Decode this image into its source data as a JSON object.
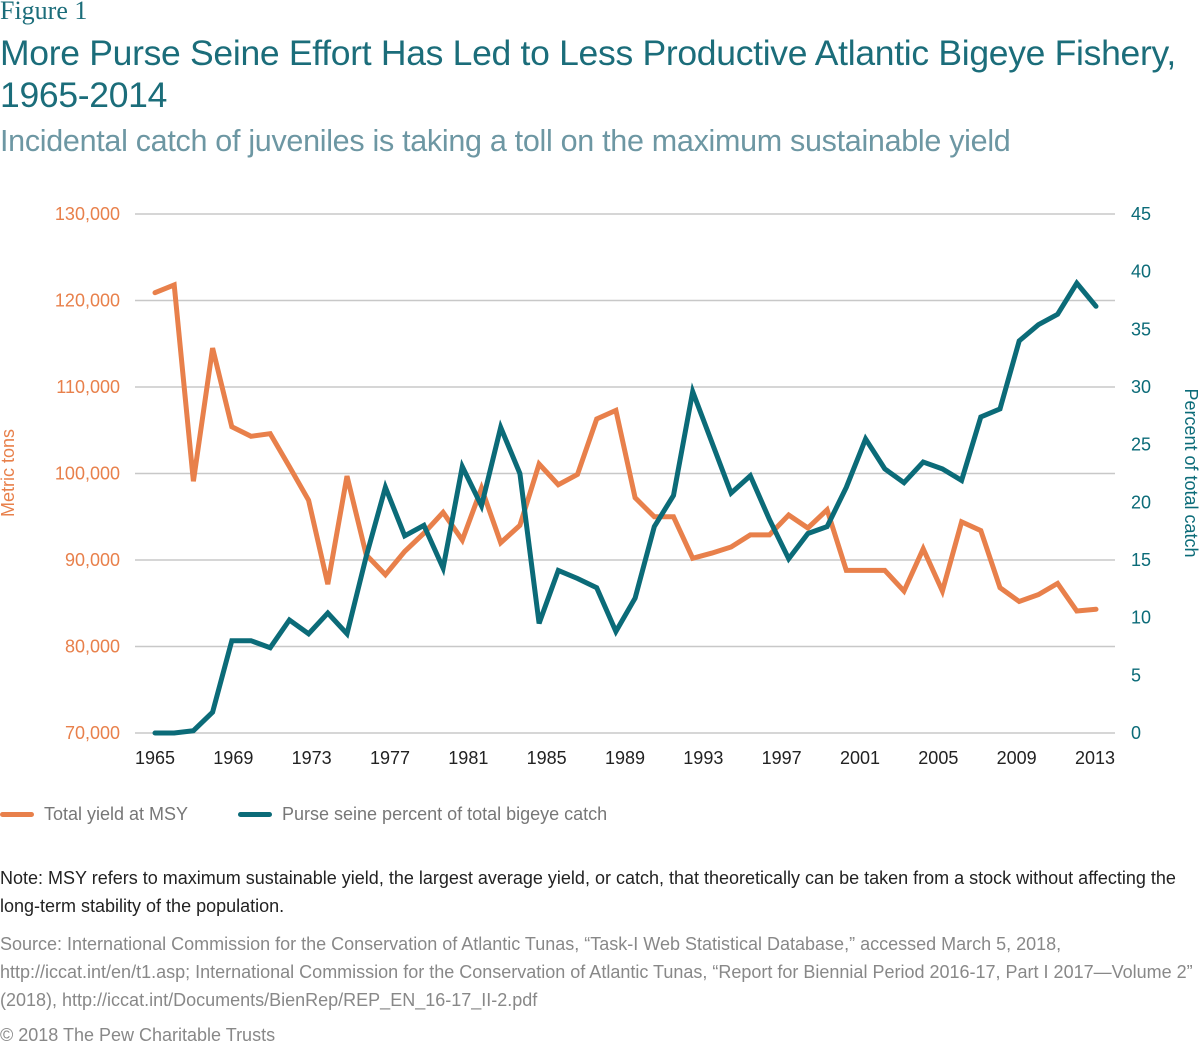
{
  "figure_label": "Figure 1",
  "title": "More Purse Seine Effort Has Led to Less Productive Atlantic Bigeye Fishery, 1965-2014",
  "subtitle": "Incidental catch of juveniles is taking a toll on the maximum sustainable yield",
  "note": "Note: MSY refers to maximum sustainable yield, the largest average yield, or catch, that theoretically can be taken from a stock without affecting the long-term stability of the population.",
  "source": "Source: International Commission for the Conservation of Atlantic Tunas, “Task-I Web Statistical Database,” accessed March 5, 2018, http://iccat.int/en/t1.asp; International Commission for the Conservation of Atlantic Tunas, “Report for Biennial Period 2016-17, Part I 2017—Volume 2” (2018), http://iccat.int/Documents/BienRep/REP_EN_16-17_II-2.pdf",
  "copyright": "© 2018 The Pew Charitable Trusts",
  "chart_data": {
    "type": "line",
    "x": [
      1965,
      1966,
      1967,
      1968,
      1969,
      1970,
      1971,
      1972,
      1973,
      1974,
      1975,
      1976,
      1977,
      1978,
      1979,
      1980,
      1981,
      1982,
      1983,
      1984,
      1985,
      1986,
      1987,
      1988,
      1989,
      1990,
      1991,
      1992,
      1993,
      1994,
      1995,
      1996,
      1997,
      1998,
      1999,
      2000,
      2001,
      2002,
      2003,
      2004,
      2005,
      2006,
      2007,
      2008,
      2009,
      2010,
      2011,
      2012,
      2013,
      2014
    ],
    "x_tick_labels": [
      "1965",
      "1969",
      "1973",
      "1977",
      "1981",
      "1985",
      "1989",
      "1993",
      "1997",
      "2001",
      "2005",
      "2009",
      "2013"
    ],
    "ylabel_left": "Metric tons",
    "ylabel_right": "Percent of total catch",
    "ylim_left": [
      70000,
      130000
    ],
    "ylim_right": [
      0,
      45
    ],
    "y_ticks_left": [
      "70,000",
      "80,000",
      "90,000",
      "100,000",
      "110,000",
      "120,000",
      "130,000"
    ],
    "y_ticks_right": [
      "0",
      "5",
      "10",
      "15",
      "20",
      "25",
      "30",
      "35",
      "40",
      "45"
    ],
    "grid": true,
    "legend_position": "bottom-left",
    "series": [
      {
        "name": "Total yield at MSY",
        "axis": "left",
        "color": "#e8804b",
        "values": [
          120900,
          121800,
          99100,
          114500,
          105400,
          104300,
          104600,
          100800,
          96900,
          87200,
          99700,
          90600,
          88300,
          91000,
          93100,
          95500,
          92300,
          98300,
          92000,
          94000,
          101100,
          98700,
          99900,
          106300,
          107300,
          97200,
          95000,
          95000,
          90200,
          90800,
          91500,
          92900,
          92900,
          95200,
          93700,
          95800,
          88800,
          88800,
          88800,
          86400,
          91300,
          86400,
          94400,
          93400,
          86800,
          85200,
          86000,
          87300,
          84100,
          84300
        ]
      },
      {
        "name": "Purse seine percent of total bigeye catch",
        "axis": "right",
        "color": "#0b6b78",
        "values": [
          0,
          0,
          0.2,
          1.8,
          8.0,
          8.0,
          7.4,
          9.8,
          8.6,
          10.4,
          8.6,
          15.3,
          21.3,
          17.1,
          18.0,
          14.3,
          23.1,
          19.7,
          26.5,
          22.5,
          9.5,
          14.1,
          13.4,
          12.6,
          8.8,
          11.7,
          17.9,
          20.6,
          29.6,
          25.2,
          20.8,
          22.3,
          18.5,
          15.1,
          17.3,
          17.9,
          21.3,
          25.5,
          22.9,
          21.7,
          23.5,
          22.9,
          21.9,
          27.4,
          28.1,
          34.0,
          35.4,
          36.3,
          39.0,
          37.0
        ]
      }
    ]
  }
}
